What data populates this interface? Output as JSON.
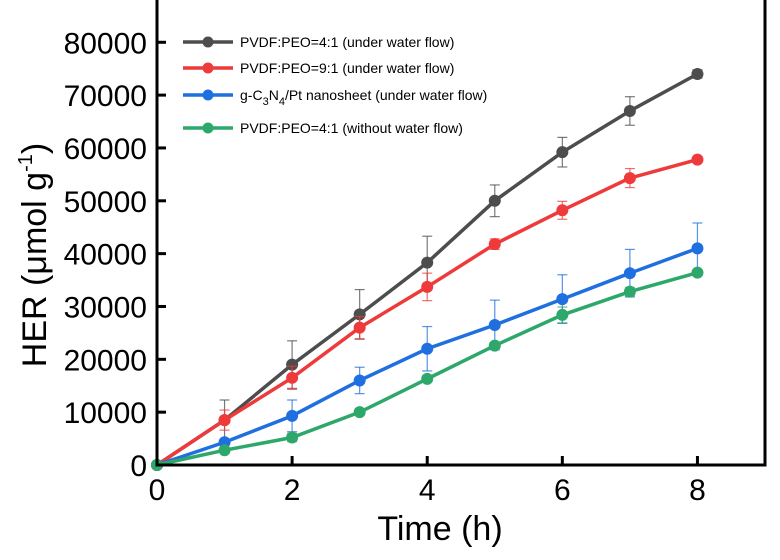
{
  "chart_data": {
    "type": "line",
    "title": "",
    "xlabel": "Time (h)",
    "ylabel_main": "HER (",
    "ylabel_unit": "μmol g",
    "ylabel_exp": "-1",
    "ylabel_close": ")",
    "xlim": [
      0,
      9
    ],
    "ylim": [
      0,
      88000
    ],
    "xticks": [
      0,
      2,
      4,
      6,
      8
    ],
    "yticks": [
      0,
      10000,
      20000,
      30000,
      40000,
      50000,
      60000,
      70000,
      80000
    ],
    "grid": false,
    "legend_position": "top-left",
    "x": [
      0,
      1,
      2,
      3,
      4,
      5,
      6,
      7,
      8
    ],
    "series": [
      {
        "name": "PVDF:PEO=4:1 (under water flow)",
        "color": "#4d4d4d",
        "values": [
          0,
          8500,
          19000,
          28500,
          38300,
          50000,
          59200,
          67000,
          74000
        ],
        "errors": [
          0,
          3800,
          4500,
          4700,
          5000,
          3000,
          2800,
          2700,
          800
        ]
      },
      {
        "name": "PVDF:PEO=9:1 (under water flow)",
        "color": "#ee3a3a",
        "values": [
          0,
          8500,
          16500,
          26000,
          33700,
          41800,
          48200,
          54300,
          57800
        ],
        "errors": [
          0,
          1900,
          2200,
          2100,
          2600,
          1000,
          1700,
          1800,
          500
        ]
      },
      {
        "name": "g-C3N4/Pt nanosheet (under water flow)",
        "color": "#1f6fe0",
        "values": [
          0,
          4300,
          9300,
          16000,
          22000,
          26500,
          31400,
          36300,
          41000
        ],
        "errors": [
          0,
          400,
          3000,
          2500,
          4200,
          4700,
          4600,
          4500,
          4800
        ]
      },
      {
        "name": "PVDF:PEO=4:1 (without water flow)",
        "color": "#2ea86a",
        "values": [
          0,
          2800,
          5200,
          10000,
          16300,
          22600,
          28400,
          32800,
          36400
        ],
        "errors": [
          0,
          500,
          800,
          600,
          600,
          500,
          1500,
          800,
          500
        ]
      }
    ],
    "legend_labels": [
      {
        "pre": "PVDF:PEO=4:1 (under water flow)"
      },
      {
        "pre": "PVDF:PEO=9:1 (under water flow)"
      },
      {
        "pre": "g-C",
        "sub1": "3",
        "mid": "N",
        "sub2": "4",
        "post": "/Pt nanosheet (under water flow)"
      },
      {
        "pre": "PVDF:PEO=4:1 (without water flow)"
      }
    ]
  }
}
